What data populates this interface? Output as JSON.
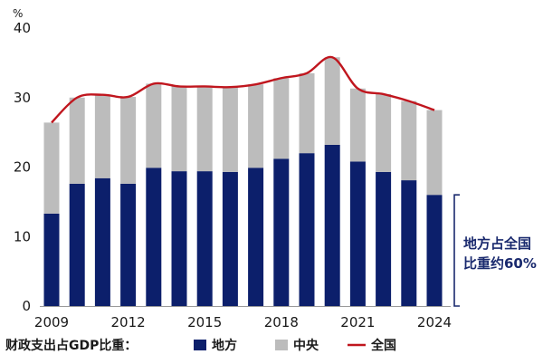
{
  "chart_data": {
    "type": "bar",
    "stacked": true,
    "y_unit_label": "%",
    "ylim": [
      0,
      40
    ],
    "yticks": [
      0,
      10,
      20,
      30,
      40
    ],
    "x": [
      2009,
      2010,
      2011,
      2012,
      2013,
      2014,
      2015,
      2016,
      2017,
      2018,
      2019,
      2020,
      2021,
      2022,
      2023,
      2024
    ],
    "xtick_labels": [
      "2009",
      "2012",
      "2015",
      "2018",
      "2021",
      "2024"
    ],
    "xtick_years": [
      2009,
      2012,
      2015,
      2018,
      2021,
      2024
    ],
    "series": [
      {
        "name": "地方",
        "type": "bar",
        "color": "#0c1f6b",
        "values": [
          13.3,
          17.6,
          18.4,
          17.6,
          19.9,
          19.4,
          19.4,
          19.3,
          19.9,
          21.2,
          22.0,
          23.2,
          20.8,
          19.3,
          18.1,
          16.0
        ]
      },
      {
        "name": "中央",
        "type": "bar",
        "color": "#bcbcbc",
        "values": [
          13.1,
          12.4,
          12.0,
          12.5,
          12.1,
          12.2,
          12.2,
          12.2,
          12.0,
          11.6,
          11.5,
          12.6,
          10.5,
          11.2,
          11.4,
          12.2
        ]
      },
      {
        "name": "全国",
        "type": "line",
        "color": "#c0161e",
        "values": [
          26.4,
          30.0,
          30.4,
          30.1,
          32.0,
          31.6,
          31.6,
          31.5,
          31.9,
          32.8,
          33.5,
          35.8,
          31.3,
          30.5,
          29.5,
          28.2
        ]
      }
    ],
    "legend_title": "财政支出占GDP比重：",
    "legend_position": "bottom",
    "annotation": [
      "地方占全国",
      "比重约60%"
    ],
    "annotation_range": [
      0,
      16
    ],
    "grid": false
  }
}
